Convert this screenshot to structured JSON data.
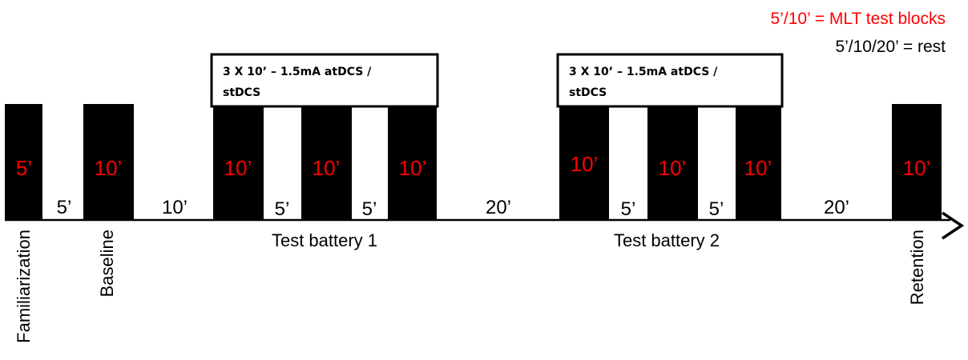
{
  "legend": {
    "mlt_text": "5’/10’ = MLT test blocks",
    "rest_text": "5’/10/20’ = rest",
    "mlt_color": "#ff0000",
    "rest_color": "#000000"
  },
  "colors": {
    "block": "#000000",
    "block_label": "#ff0000",
    "rest_label": "#000000",
    "background": "#ffffff"
  },
  "stimulation_boxes": [
    {
      "line1": "3 X 10’ – 1.5mA atDCS /",
      "line2": "stDCS"
    },
    {
      "line1": "3 X 10’ – 1.5mA atDCS /",
      "line2": "stDCS"
    }
  ],
  "test_blocks": [
    "5’",
    "10’",
    "10’",
    "10’",
    "10’",
    "10’",
    "10’",
    "10’",
    "10’"
  ],
  "rest_periods": [
    "5’",
    "10’",
    "5’",
    "5’",
    "20’",
    "5’",
    "5’",
    "20’"
  ],
  "phase_labels": {
    "familiarization": "Familiarization",
    "baseline": "Baseline",
    "test_battery_1": "Test battery 1",
    "test_battery_2": "Test battery 2",
    "retention": "Retention"
  }
}
